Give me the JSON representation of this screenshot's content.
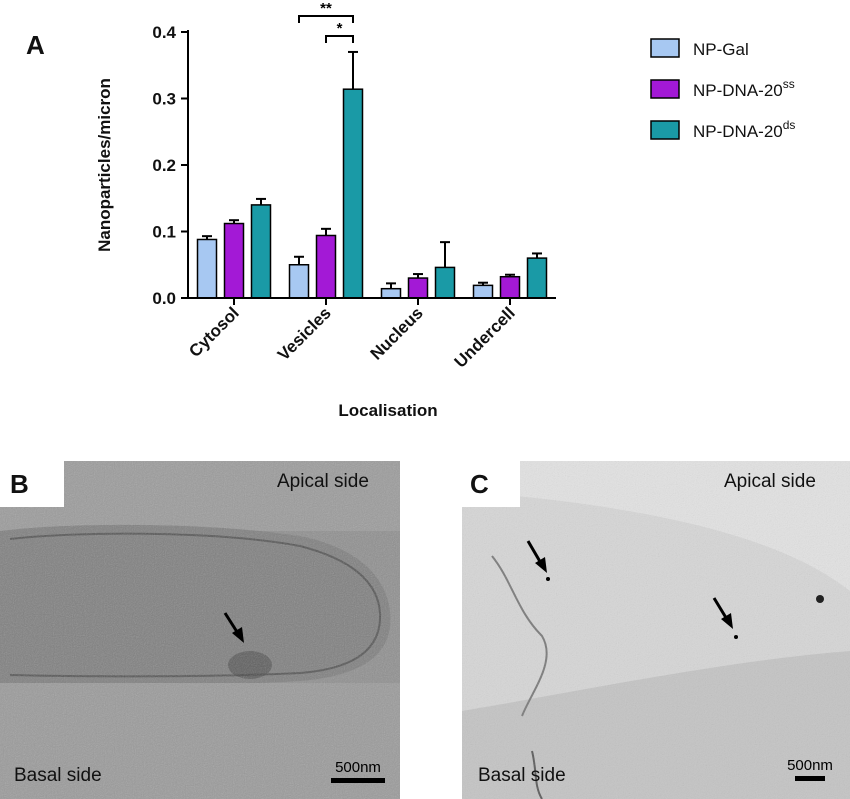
{
  "panels": {
    "a": "A",
    "b": "B",
    "c": "C"
  },
  "chart_data": {
    "type": "bar",
    "ylabel": "Nanoparticles/micron",
    "xlabel": "Localisation",
    "categories": [
      "Cytosol",
      "Vesicles",
      "Nucleus",
      "Undercell"
    ],
    "ylim": [
      0,
      0.4
    ],
    "yticks": [
      "0.0",
      "0.1",
      "0.2",
      "0.3",
      "0.4"
    ],
    "legend_position": "top-right",
    "series": [
      {
        "name": "NP-Gal",
        "sup": "",
        "color": "#a7c8f2",
        "values": [
          0.088,
          0.05,
          0.014,
          0.019
        ],
        "errors": [
          0.005,
          0.012,
          0.008,
          0.004
        ]
      },
      {
        "name": "NP-DNA-20",
        "sup": "ss",
        "color": "#a319d6",
        "values": [
          0.112,
          0.094,
          0.03,
          0.032
        ],
        "errors": [
          0.005,
          0.01,
          0.006,
          0.003
        ]
      },
      {
        "name": "NP-DNA-20",
        "sup": "ds",
        "color": "#1a9aa6",
        "values": [
          0.14,
          0.314,
          0.046,
          0.06
        ],
        "errors": [
          0.009,
          0.056,
          0.038,
          0.007
        ]
      }
    ],
    "annotations": [
      "**",
      "*"
    ]
  },
  "em_b": {
    "apical": "Apical side",
    "basal": "Basal side",
    "scale": "500nm"
  },
  "em_c": {
    "apical": "Apical side",
    "basal": "Basal side",
    "scale": "500nm"
  }
}
